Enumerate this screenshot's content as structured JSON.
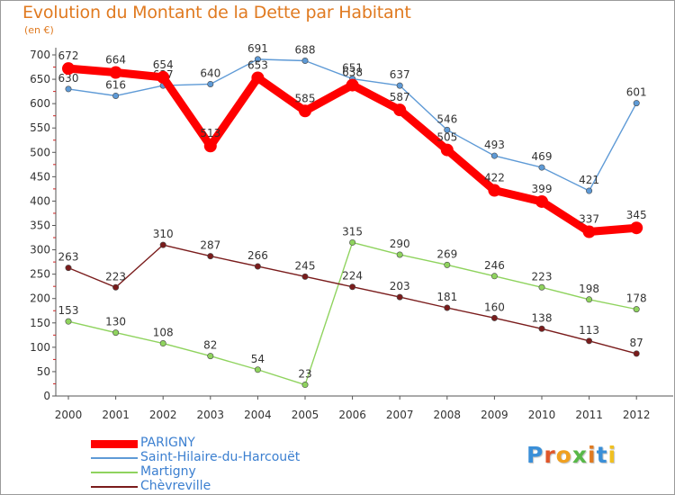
{
  "title": "Evolution du Montant de la Dette par Habitant",
  "unit": "(en €)",
  "logo": {
    "text": "Proxiti",
    "colors": [
      "#3a8fd8",
      "#e0562a",
      "#f0a020",
      "#58b848",
      "#e07a20",
      "#3a8fd8",
      "#f0c020"
    ]
  },
  "chart_data": {
    "type": "line",
    "x": [
      2000,
      2001,
      2002,
      2003,
      2004,
      2005,
      2006,
      2007,
      2008,
      2009,
      2010,
      2011,
      2012
    ],
    "ylim": [
      0,
      700
    ],
    "yticks": [
      0,
      50,
      100,
      150,
      200,
      250,
      300,
      350,
      400,
      450,
      500,
      550,
      600,
      650,
      700
    ],
    "grid": false,
    "legend": "bottom-left",
    "series": [
      {
        "name": "Saint-Hilaire-du-Harcouët",
        "color": "#5e9ad6",
        "values": [
          630,
          616,
          637,
          640,
          691,
          688,
          651,
          637,
          546,
          493,
          469,
          421,
          601
        ]
      },
      {
        "name": "Martigny",
        "color": "#8fd35e",
        "values": [
          153,
          130,
          108,
          82,
          54,
          23,
          315,
          290,
          269,
          246,
          223,
          198,
          178
        ]
      },
      {
        "name": "Chèvreville",
        "color": "#7a1c1c",
        "values": [
          263,
          223,
          310,
          287,
          266,
          245,
          224,
          203,
          181,
          160,
          138,
          113,
          87
        ]
      },
      {
        "name": "PARIGNY",
        "color": "#ff0000",
        "values": [
          672,
          664,
          654,
          513,
          653,
          585,
          638,
          587,
          505,
          422,
          399,
          337,
          345
        ]
      }
    ],
    "legend_order": [
      "PARIGNY",
      "Saint-Hilaire-du-Harcouët",
      "Martigny",
      "Chèvreville"
    ]
  }
}
